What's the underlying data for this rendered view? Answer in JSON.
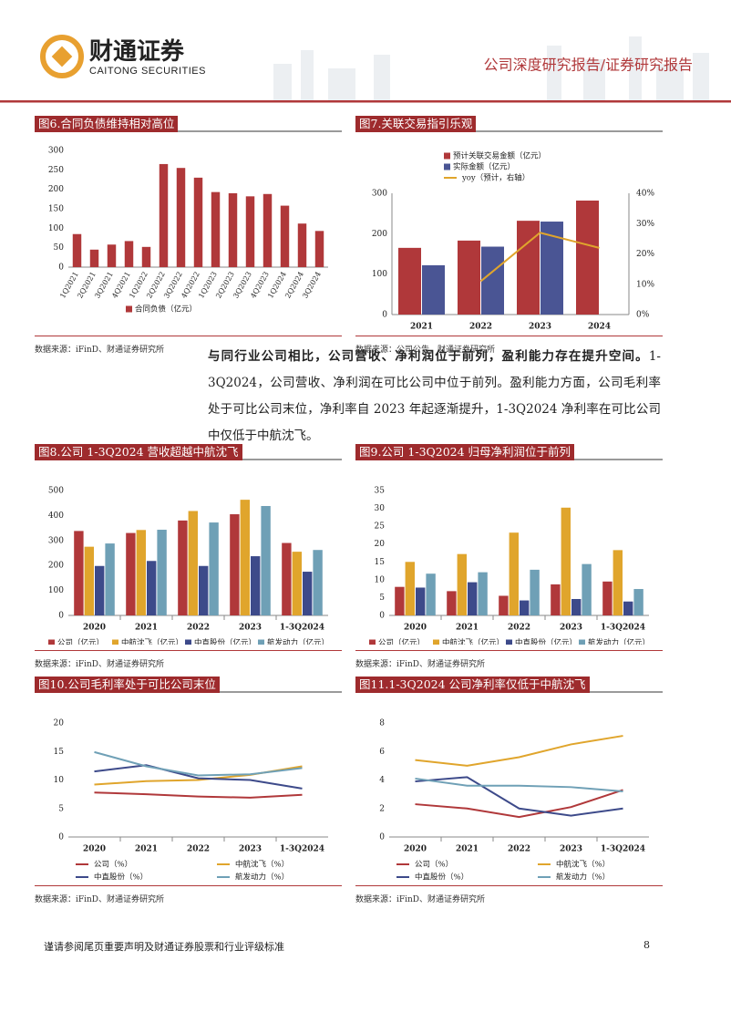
{
  "header": {
    "logo_cn": "财通证券",
    "logo_en": "CAITONG SECURITIES",
    "report_type": "公司深度研究报告/证券研究报告"
  },
  "paragraph": {
    "bold": "与同行业公司相比，公司营收、净利润位于前列，盈利能力存在提升空间。",
    "text": "1-3Q2024，公司营收、净利润在可比公司中位于前列。盈利能力方面，公司毛利率处于可比公司末位，净利率自 2023 年起逐渐提升，1-3Q2024 净利率在可比公司中仅低于中航沈飞。"
  },
  "footer": {
    "disclaimer": "谨请参阅尾页重要声明及财通证券股票和行业评级标准",
    "page": "8"
  },
  "chart_data": [
    {
      "type": "bar",
      "title": "图6.合同负债维持相对高位",
      "source": "数据来源：iFinD、财通证券研究所",
      "legend": "bottom",
      "categories": [
        "1Q2021",
        "2Q2021",
        "3Q2021",
        "4Q2021",
        "1Q2022",
        "2Q2022",
        "3Q2022",
        "4Q2022",
        "1Q2023",
        "2Q2023",
        "3Q2023",
        "4Q2023",
        "1Q2024",
        "2Q2024",
        "3Q2024"
      ],
      "series": [
        {
          "name": "合同负债（亿元）",
          "color": "#b0383a",
          "values": [
            85,
            45,
            58,
            67,
            52,
            265,
            255,
            230,
            193,
            190,
            182,
            188,
            158,
            112,
            93
          ]
        }
      ],
      "ylim": [
        0,
        300
      ],
      "yticks": [
        0,
        50,
        100,
        150,
        200,
        250,
        300
      ]
    },
    {
      "type": "bar_line",
      "title": "图7.关联交易指引乐观",
      "source": "数据来源：公司公告、财通证券研究所",
      "legend": "top",
      "categories": [
        "2021",
        "2022",
        "2023",
        "2024"
      ],
      "series": [
        {
          "name": "预计关联交易金额（亿元）",
          "color": "#b0383a",
          "values": [
            165,
            183,
            232,
            282
          ]
        },
        {
          "name": "实际金额（亿元）",
          "color": "#4a5594",
          "values": [
            122,
            168,
            230,
            null
          ]
        },
        {
          "name": "yoy（预计，右轴）",
          "color": "#e0a52c",
          "axis": "y2",
          "values": [
            null,
            11,
            27,
            22
          ]
        }
      ],
      "ylim": [
        0,
        300
      ],
      "yticks": [
        0,
        100,
        200,
        300
      ],
      "y2lim": [
        0,
        40
      ],
      "y2ticks": [
        {
          "value": 0,
          "label": "0%"
        },
        {
          "value": 10,
          "label": "10%"
        },
        {
          "value": 20,
          "label": "20%"
        },
        {
          "value": 30,
          "label": "30%"
        },
        {
          "value": 40,
          "label": "40%"
        }
      ]
    },
    {
      "type": "bar",
      "title": "图8.公司 1-3Q2024 营收超越中航沈飞",
      "source": "数据来源：iFinD、财通证券研究所",
      "legend": "bottom",
      "categories": [
        "2020",
        "2021",
        "2022",
        "2023",
        "1-3Q2024"
      ],
      "series": [
        {
          "name": "公司（亿元）",
          "color": "#b0383a",
          "values": [
            338,
            330,
            380,
            405,
            290
          ]
        },
        {
          "name": "中航沈飞（亿元）",
          "color": "#e0a52c",
          "values": [
            275,
            342,
            418,
            463,
            255
          ]
        },
        {
          "name": "中直股份（亿元）",
          "color": "#3d4a8a",
          "values": [
            198,
            218,
            198,
            237,
            175
          ]
        },
        {
          "name": "航发动力（亿元）",
          "color": "#6fa0b6",
          "values": [
            288,
            343,
            372,
            438,
            262
          ]
        }
      ],
      "ylim": [
        0,
        500
      ],
      "yticks": [
        0,
        100,
        200,
        300,
        400,
        500
      ]
    },
    {
      "type": "bar",
      "title": "图9.公司 1-3Q2024 归母净利润位于前列",
      "source": "数据来源：iFinD、财通证券研究所",
      "legend": "bottom",
      "categories": [
        "2020",
        "2021",
        "2022",
        "2023",
        "1-3Q2024"
      ],
      "series": [
        {
          "name": "公司（亿元）",
          "color": "#b0383a",
          "values": [
            8,
            6.8,
            5.5,
            8.7,
            9.5
          ]
        },
        {
          "name": "中航沈飞（亿元）",
          "color": "#e0a52c",
          "values": [
            15,
            17.2,
            23.2,
            30.2,
            18.3
          ]
        },
        {
          "name": "中直股份（亿元）",
          "color": "#3d4a8a",
          "values": [
            7.8,
            9.3,
            4.2,
            4.6,
            3.9
          ]
        },
        {
          "name": "航发动力（亿元）",
          "color": "#6fa0b6",
          "values": [
            11.7,
            12.1,
            12.8,
            14.4,
            7.4
          ]
        }
      ],
      "ylim": [
        0,
        35
      ],
      "yticks": [
        0,
        5,
        10,
        15,
        20,
        25,
        30,
        35
      ]
    },
    {
      "type": "line",
      "title": "图10.公司毛利率处于可比公司末位",
      "source": "数据来源：iFinD、财通证券研究所",
      "legend": "bottom-grid",
      "categories": [
        "2020",
        "2021",
        "2022",
        "2023",
        "1-3Q2024"
      ],
      "series": [
        {
          "name": "公司（%）",
          "color": "#b0383a",
          "values": [
            7.8,
            7.5,
            7.1,
            6.9,
            7.4
          ]
        },
        {
          "name": "中航沈飞（%）",
          "color": "#e0a52c",
          "values": [
            9.2,
            9.8,
            10.0,
            10.9,
            12.4
          ]
        },
        {
          "name": "中直股份（%）",
          "color": "#3d4a8a",
          "values": [
            11.5,
            12.6,
            10.3,
            10.0,
            8.5
          ]
        },
        {
          "name": "航发动力（%）",
          "color": "#6fa0b6",
          "values": [
            14.9,
            12.4,
            10.8,
            11.0,
            12.1
          ]
        }
      ],
      "ylim": [
        0,
        20
      ],
      "yticks": [
        0,
        5,
        10,
        15,
        20
      ]
    },
    {
      "type": "line",
      "title": "图11.1-3Q2024 公司净利率仅低于中航沈飞",
      "source": "数据来源：iFinD、财通证券研究所",
      "legend": "bottom-grid",
      "categories": [
        "2020",
        "2021",
        "2022",
        "2023",
        "1-3Q2024"
      ],
      "series": [
        {
          "name": "公司（%）",
          "color": "#b0383a",
          "values": [
            2.3,
            2.0,
            1.4,
            2.1,
            3.3
          ]
        },
        {
          "name": "中航沈飞（%）",
          "color": "#e0a52c",
          "values": [
            5.4,
            5.0,
            5.6,
            6.5,
            7.1
          ]
        },
        {
          "name": "中直股份（%）",
          "color": "#3d4a8a",
          "values": [
            3.9,
            4.2,
            2.0,
            1.5,
            2.0
          ]
        },
        {
          "name": "航发动力（%）",
          "color": "#6fa0b6",
          "values": [
            4.1,
            3.6,
            3.6,
            3.5,
            3.2
          ]
        }
      ],
      "ylim": [
        0,
        8
      ],
      "yticks": [
        0,
        2,
        4,
        6,
        8
      ]
    }
  ]
}
